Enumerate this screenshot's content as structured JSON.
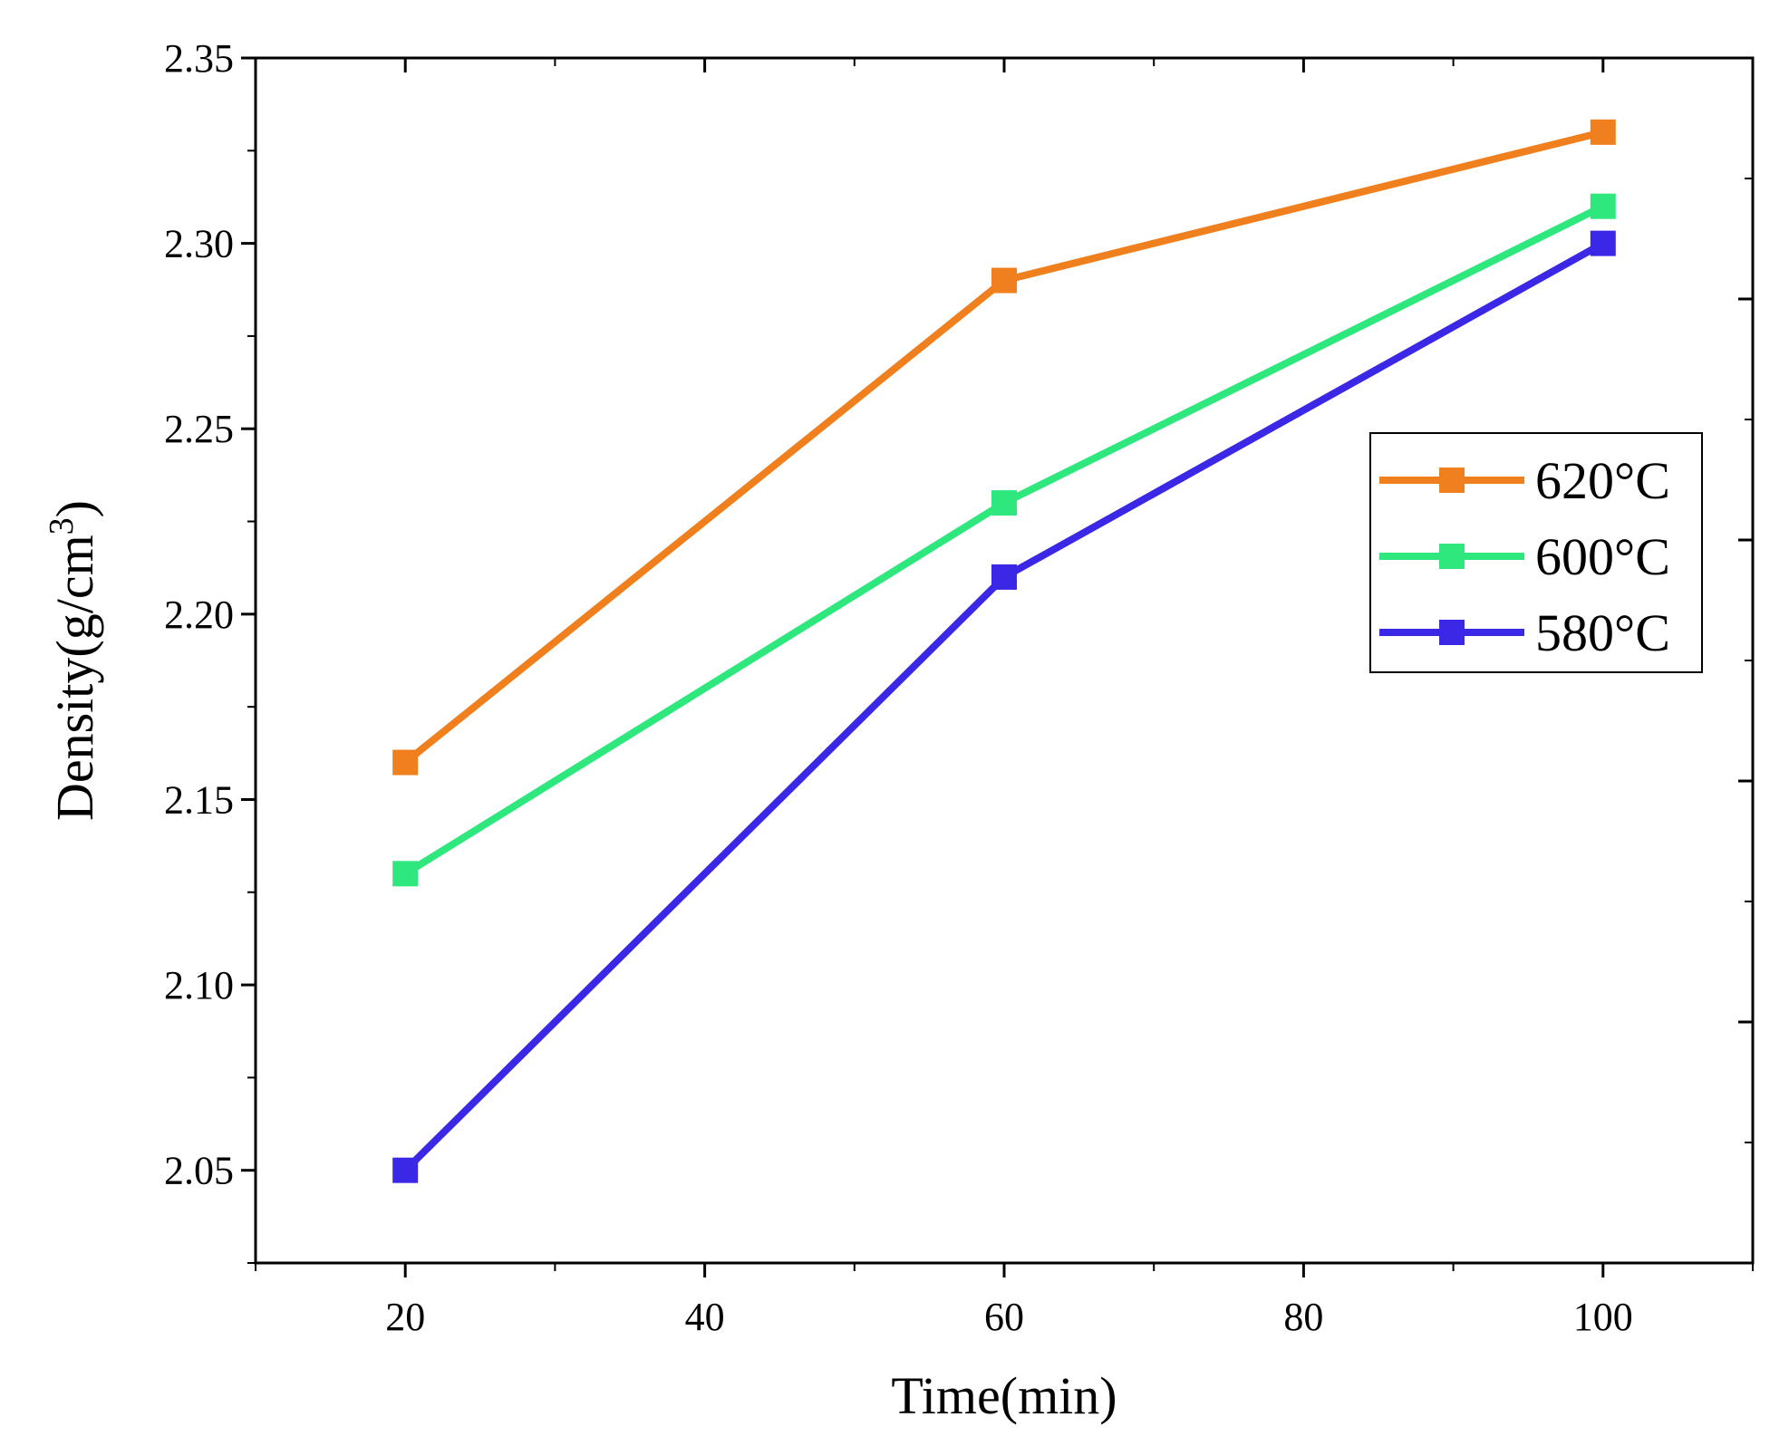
{
  "chart_data": {
    "type": "line",
    "title": "",
    "xlabel": "Time(min)",
    "ylabel_prefix": "Density(g/cm",
    "ylabel_sup": "3",
    "ylabel_suffix": ")",
    "xlim": [
      10,
      110
    ],
    "ylim": [
      2.025,
      2.35
    ],
    "x_ticks": [
      "20",
      "40",
      "60",
      "80",
      "100"
    ],
    "y_ticks": [
      "2.05",
      "2.10",
      "2.15",
      "2.20",
      "2.25",
      "2.30",
      "2.35"
    ],
    "x": [
      20,
      60,
      100
    ],
    "legend_position": "right",
    "series": [
      {
        "name": "620°C",
        "color": "#F07F1E",
        "values": [
          2.16,
          2.29,
          2.33
        ]
      },
      {
        "name": "600°C",
        "color": "#2EE87E",
        "values": [
          2.13,
          2.23,
          2.31
        ]
      },
      {
        "name": "580°C",
        "color": "#3B28E6",
        "values": [
          2.05,
          2.21,
          2.3
        ]
      }
    ]
  }
}
